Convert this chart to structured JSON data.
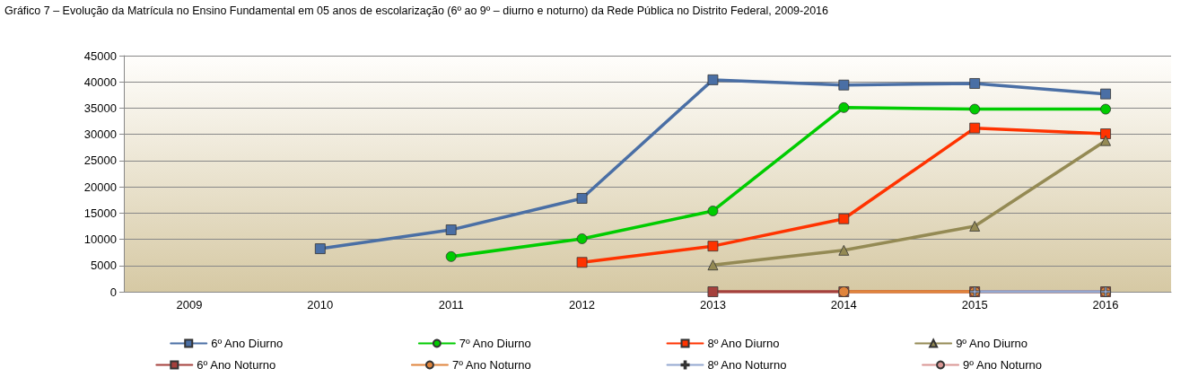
{
  "chart_data": {
    "type": "line",
    "title": "Gráfico 7 – Evolução da Matrícula no Ensino Fundamental em 05 anos de escolarização (6º ao 9º – diurno e noturno) da Rede Pública no Distrito Federal, 2009-2016",
    "categories": [
      "2009",
      "2010",
      "2011",
      "2012",
      "2013",
      "2014",
      "2015",
      "2016"
    ],
    "ylim": [
      0,
      45000
    ],
    "yticks": [
      0,
      5000,
      10000,
      15000,
      20000,
      25000,
      30000,
      35000,
      40000,
      45000
    ],
    "grid": "y",
    "legend": "bottom",
    "series": [
      {
        "name": "6º Ano Diurno",
        "color": "#4a6fa5",
        "marker": "square",
        "values": [
          null,
          8200,
          11800,
          17800,
          40400,
          39400,
          39700,
          37700
        ]
      },
      {
        "name": "7º Ano Diurno",
        "color": "#00cc00",
        "marker": "circle",
        "values": [
          null,
          null,
          6700,
          10100,
          15400,
          35100,
          34800,
          34800
        ]
      },
      {
        "name": "8º Ano Diurno",
        "color": "#ff3300",
        "marker": "square",
        "values": [
          null,
          null,
          null,
          5600,
          8700,
          13900,
          31200,
          30100
        ]
      },
      {
        "name": "9º Ano Diurno",
        "color": "#948a54",
        "marker": "triangle",
        "values": [
          null,
          null,
          null,
          null,
          5100,
          7900,
          12500,
          28800
        ]
      },
      {
        "name": "6º Ano Noturno",
        "color": "#a5403c",
        "marker": "square",
        "values": [
          null,
          null,
          null,
          null,
          0,
          0,
          0,
          0
        ]
      },
      {
        "name": "7º Ano Noturno",
        "color": "#e0843c",
        "marker": "circle",
        "values": [
          null,
          null,
          null,
          null,
          null,
          0,
          0,
          0
        ]
      },
      {
        "name": "8º Ano Noturno",
        "color": "#94a8d0",
        "marker": "cross",
        "values": [
          null,
          null,
          null,
          null,
          null,
          null,
          0,
          0
        ]
      },
      {
        "name": "9º Ano Noturno",
        "color": "#d99694",
        "marker": "none",
        "values": [
          null,
          null,
          null,
          null,
          null,
          null,
          null,
          null
        ]
      }
    ]
  }
}
